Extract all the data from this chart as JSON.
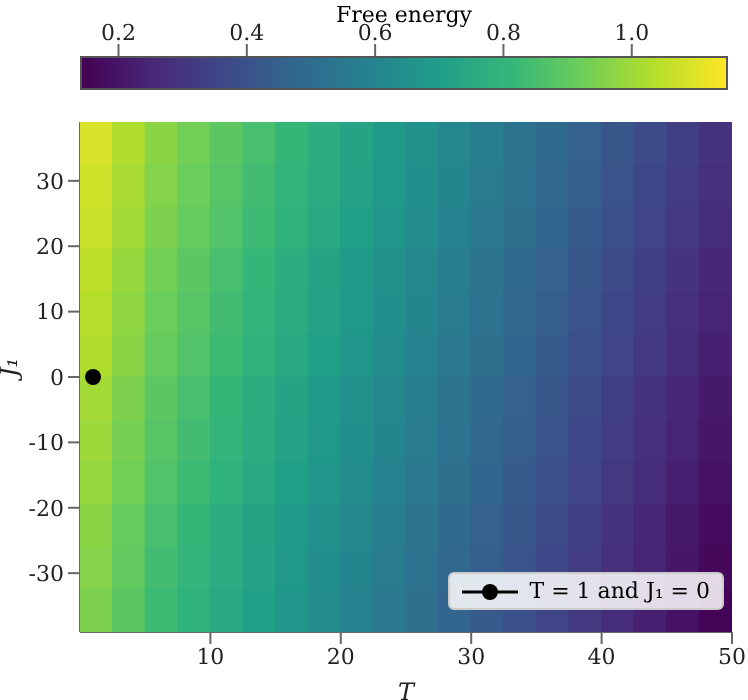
{
  "chart_data": {
    "type": "heatmap",
    "xlabel": "T",
    "ylabel": "J₁",
    "clabel": "Free energy",
    "xlim": [
      0,
      50
    ],
    "xticks": [
      10,
      20,
      30,
      40,
      50
    ],
    "ylim": [
      -39,
      39
    ],
    "yticks": [
      -30,
      -20,
      -10,
      0,
      10,
      20,
      30
    ],
    "clim": [
      0.14,
      1.15
    ],
    "cticks": [
      0.2,
      0.4,
      0.6,
      0.8,
      {
        "value": 1.0,
        "label": "1.0"
      }
    ],
    "cells": [
      [
        1.09,
        1.03,
        0.97,
        0.93,
        0.89,
        0.85,
        0.81,
        0.77,
        0.73,
        0.69,
        0.65,
        0.61,
        0.57,
        0.53,
        0.49,
        0.45,
        0.41,
        0.37,
        0.33,
        0.29
      ],
      [
        1.08,
        1.02,
        0.96,
        0.92,
        0.88,
        0.84,
        0.8,
        0.76,
        0.72,
        0.68,
        0.64,
        0.6,
        0.56,
        0.52,
        0.48,
        0.44,
        0.4,
        0.36,
        0.32,
        0.28
      ],
      [
        1.07,
        1.01,
        0.95,
        0.91,
        0.87,
        0.83,
        0.79,
        0.75,
        0.71,
        0.67,
        0.63,
        0.59,
        0.55,
        0.51,
        0.47,
        0.43,
        0.39,
        0.35,
        0.31,
        0.27
      ],
      [
        1.05,
        0.99,
        0.93,
        0.89,
        0.85,
        0.81,
        0.77,
        0.73,
        0.69,
        0.65,
        0.61,
        0.57,
        0.53,
        0.49,
        0.45,
        0.41,
        0.37,
        0.33,
        0.29,
        0.25
      ],
      [
        1.04,
        0.98,
        0.92,
        0.88,
        0.84,
        0.8,
        0.76,
        0.72,
        0.68,
        0.64,
        0.6,
        0.56,
        0.52,
        0.48,
        0.44,
        0.4,
        0.36,
        0.32,
        0.28,
        0.24
      ],
      [
        1.03,
        0.97,
        0.91,
        0.87,
        0.83,
        0.79,
        0.75,
        0.71,
        0.67,
        0.63,
        0.59,
        0.55,
        0.51,
        0.47,
        0.43,
        0.39,
        0.35,
        0.31,
        0.27,
        0.23
      ],
      [
        1.01,
        0.95,
        0.89,
        0.85,
        0.81,
        0.77,
        0.73,
        0.69,
        0.65,
        0.61,
        0.57,
        0.53,
        0.49,
        0.45,
        0.41,
        0.37,
        0.33,
        0.29,
        0.25,
        0.21
      ],
      [
        1.0,
        0.94,
        0.88,
        0.84,
        0.8,
        0.76,
        0.72,
        0.68,
        0.64,
        0.6,
        0.56,
        0.52,
        0.48,
        0.44,
        0.4,
        0.36,
        0.32,
        0.28,
        0.24,
        0.2
      ],
      [
        0.99,
        0.93,
        0.87,
        0.83,
        0.79,
        0.75,
        0.71,
        0.67,
        0.63,
        0.59,
        0.55,
        0.51,
        0.47,
        0.43,
        0.39,
        0.35,
        0.31,
        0.27,
        0.23,
        0.19
      ],
      [
        0.97,
        0.91,
        0.85,
        0.81,
        0.77,
        0.73,
        0.69,
        0.65,
        0.61,
        0.57,
        0.53,
        0.49,
        0.45,
        0.41,
        0.37,
        0.33,
        0.29,
        0.25,
        0.21,
        0.17
      ],
      [
        0.96,
        0.9,
        0.84,
        0.8,
        0.76,
        0.72,
        0.68,
        0.64,
        0.6,
        0.56,
        0.52,
        0.48,
        0.44,
        0.4,
        0.36,
        0.32,
        0.28,
        0.24,
        0.2,
        0.16
      ],
      [
        0.95,
        0.89,
        0.83,
        0.79,
        0.75,
        0.71,
        0.67,
        0.63,
        0.59,
        0.55,
        0.51,
        0.47,
        0.43,
        0.39,
        0.35,
        0.31,
        0.27,
        0.23,
        0.19,
        0.15
      ]
    ],
    "series": [
      {
        "type": "scatter",
        "name": "T = 1 and J₁ = 0",
        "color": "#000000",
        "x": [
          1
        ],
        "values": [
          0
        ]
      }
    ],
    "marker": "circle",
    "legend": "bottom right"
  }
}
